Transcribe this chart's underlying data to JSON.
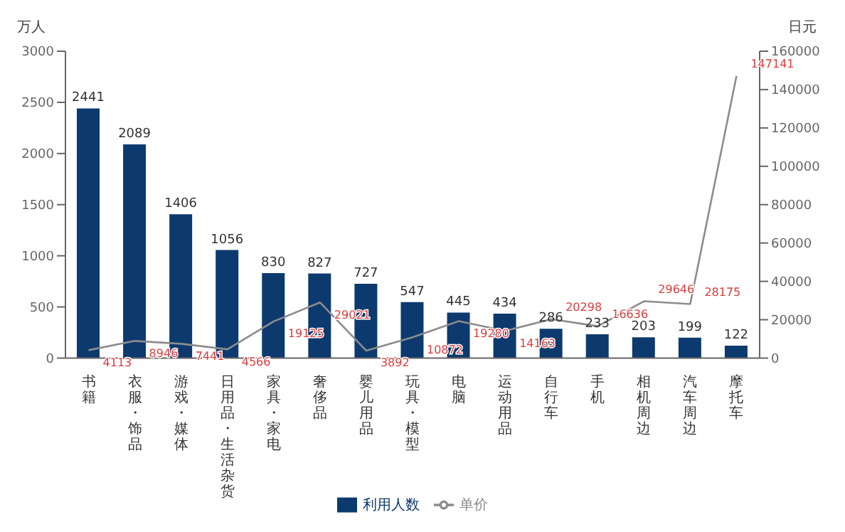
{
  "chart_data": {
    "type": "bar",
    "ylabel": "万人",
    "y2label": "日元",
    "categories": [
      "书籍",
      "衣服・饰品",
      "游戏・媒体",
      "日用品・生活杂货",
      "家具・家电",
      "奢侈品",
      "婴儿用品",
      "玩具・模型",
      "电脑",
      "运动用品",
      "自行车",
      "手机",
      "相机周边",
      "汽车周边",
      "摩托车"
    ],
    "series": [
      {
        "name": "利用人数",
        "color": "#0d3a6e",
        "values": [
          2441,
          2089,
          1406,
          1056,
          830,
          827,
          727,
          547,
          445,
          434,
          286,
          233,
          203,
          199,
          122
        ]
      },
      {
        "name": "单价",
        "type": "line",
        "axis": "y2",
        "color": "#8c8c8c",
        "values": [
          4113,
          8946,
          7441,
          4566,
          19125,
          29021,
          3892,
          10872,
          19280,
          14163,
          20298,
          16636,
          29646,
          28175,
          147141
        ]
      }
    ],
    "ylim": [
      0,
      3000
    ],
    "yticks": [
      0,
      500,
      1000,
      1500,
      2000,
      2500,
      3000
    ],
    "y2lim": [
      0,
      160000
    ],
    "y2ticks": [
      0,
      20000,
      40000,
      60000,
      80000,
      100000,
      120000,
      140000,
      160000
    ],
    "data_labels": true,
    "grid": false,
    "legend": "bottom",
    "marker": "none",
    "line_style": "solid"
  }
}
